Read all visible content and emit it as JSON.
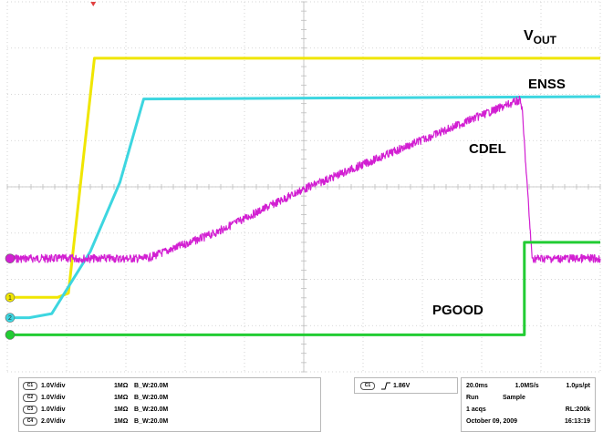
{
  "chart_data": {
    "type": "line",
    "title": "",
    "xlabel": "",
    "ylabel": "",
    "grid": true,
    "divisions": {
      "x": 10,
      "y": 8
    },
    "xlim": [
      0,
      10
    ],
    "ylim": [
      0,
      8
    ],
    "series": [
      {
        "name": "VOUT",
        "color": "#f0e600",
        "channel_marker": "1",
        "x": [
          0,
          0.85,
          1.03,
          1.47,
          1.65,
          10
        ],
        "y": [
          1.61,
          1.61,
          1.7,
          6.78,
          6.78,
          6.78
        ]
      },
      {
        "name": "ENSS",
        "color": "#3dd6e0",
        "channel_marker": "2",
        "x": [
          0,
          0.37,
          0.75,
          1.4,
          1.9,
          2.3,
          10
        ],
        "y": [
          1.17,
          1.17,
          1.26,
          2.6,
          4.1,
          5.9,
          5.95
        ]
      },
      {
        "name": "CDEL",
        "color": "#d21fd2",
        "channel_marker": "",
        "x": [
          0,
          2.35,
          3.5,
          5.0,
          6.5,
          8.0,
          8.65,
          8.68,
          8.85,
          10
        ],
        "y": [
          2.45,
          2.45,
          3.0,
          3.95,
          4.75,
          5.55,
          5.88,
          5.7,
          2.45,
          2.45
        ]
      },
      {
        "name": "PGOOD",
        "color": "#22cc33",
        "channel_marker": "",
        "x": [
          0,
          8.72,
          8.72,
          10
        ],
        "y": [
          0.8,
          0.8,
          2.8,
          2.8
        ]
      }
    ],
    "labels": {
      "vout_main": "V",
      "vout_sub": "OUT",
      "enss": "ENSS",
      "cdel": "CDEL",
      "pgood": "PGOOD"
    }
  },
  "status": {
    "channels": [
      {
        "badge": "C1",
        "scale": "1.0V/div",
        "impedance": "1MΩ",
        "bw": "B_W:20.0M"
      },
      {
        "badge": "C2",
        "scale": "1.0V/div",
        "impedance": "1MΩ",
        "bw": "B_W:20.0M"
      },
      {
        "badge": "C3",
        "scale": "1.0V/div",
        "impedance": "1MΩ",
        "bw": "B_W:20.0M"
      },
      {
        "badge": "C4",
        "scale": "2.0V/div",
        "impedance": "1MΩ",
        "bw": "B_W:20.0M"
      }
    ],
    "trigger": {
      "badge": "C1",
      "level": "1.86V"
    },
    "acquisition": {
      "timebase": "20.0ms",
      "sample_rate": "1.0MS/s",
      "resolution": "1.0μs/pt",
      "run_state": "Run",
      "mode": "Sample",
      "acqs": "1 acqs",
      "record_length": "RL:200k",
      "date": "October 09, 2009",
      "time": "16:13:19"
    }
  }
}
